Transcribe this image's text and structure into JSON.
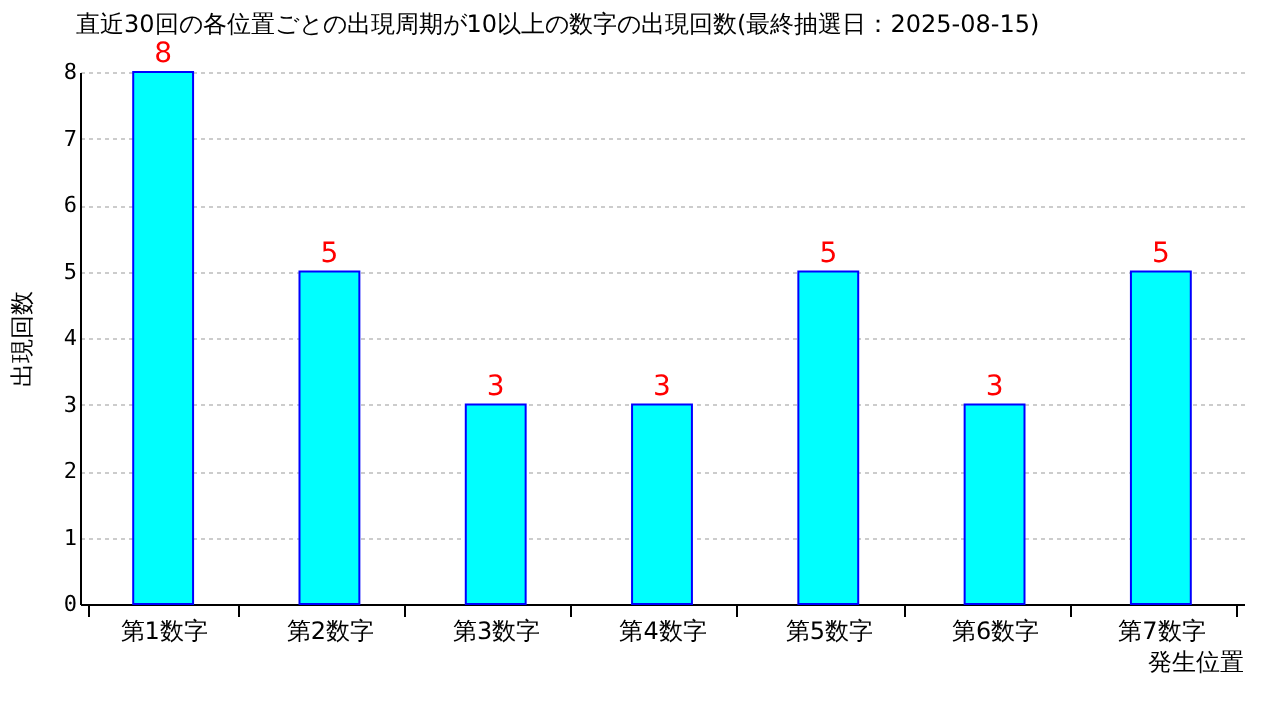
{
  "chart_data": {
    "type": "bar",
    "title": "直近30回の各位置ごとの出現周期が10以上の数字の出現回数(最終抽選日：2025-08-15)",
    "xlabel": "発生位置",
    "ylabel": "出現回数",
    "categories": [
      "第1数字",
      "第2数字",
      "第3数字",
      "第4数字",
      "第5数字",
      "第6数字",
      "第7数字"
    ],
    "values": [
      8,
      5,
      3,
      3,
      5,
      3,
      5
    ],
    "color": "#00ffff",
    "data_labels": true,
    "ylim": [
      0,
      8
    ],
    "yticks": [
      0,
      1,
      2,
      3,
      4,
      5,
      6,
      7,
      8
    ],
    "grid": "y"
  }
}
